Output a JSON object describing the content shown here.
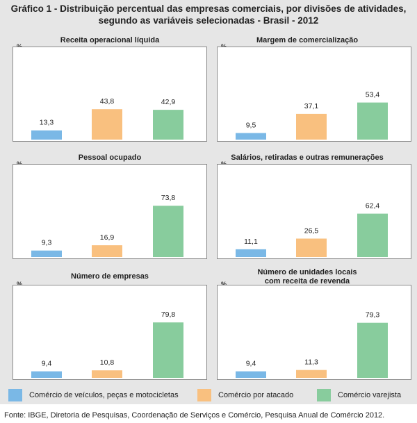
{
  "figure_title_line1": "Gráfico 1 - Distribuição percentual das empresas comerciais, por divisões de atividades,",
  "figure_title_line2": "segundo as variáveis selecionadas - Brasil - 2012",
  "unit_label": "%",
  "colors": {
    "veiculos": "#7ab8e6",
    "atacado": "#f9c07f",
    "varejo": "#88cc9d"
  },
  "chart_data": [
    {
      "type": "bar",
      "title": "Receita  operacional líquida",
      "ylabel": "%",
      "ylim": [
        0,
        100
      ],
      "categories": [
        "Comércio de veículos, peças e motocicletas",
        "Comércio por atacado",
        "Comércio varejista"
      ],
      "values": [
        13.3,
        43.8,
        42.9
      ],
      "value_labels": [
        "13,3",
        "43,8",
        "42,9"
      ]
    },
    {
      "type": "bar",
      "title": "Margem de comercialização",
      "ylabel": "%",
      "ylim": [
        0,
        100
      ],
      "categories": [
        "Comércio de veículos, peças e motocicletas",
        "Comércio por atacado",
        "Comércio varejista"
      ],
      "values": [
        9.5,
        37.1,
        53.4
      ],
      "value_labels": [
        "9,5",
        "37,1",
        "53,4"
      ]
    },
    {
      "type": "bar",
      "title": "Pessoal ocupado",
      "ylabel": "%",
      "ylim": [
        0,
        100
      ],
      "categories": [
        "Comércio de veículos, peças e motocicletas",
        "Comércio por atacado",
        "Comércio varejista"
      ],
      "values": [
        9.3,
        16.9,
        73.8
      ],
      "value_labels": [
        "9,3",
        "16,9",
        "73,8"
      ]
    },
    {
      "type": "bar",
      "title": "Salários, retiradas e outras remunerações",
      "ylabel": "%",
      "ylim": [
        0,
        100
      ],
      "categories": [
        "Comércio de veículos, peças e motocicletas",
        "Comércio por atacado",
        "Comércio varejista"
      ],
      "values": [
        11.1,
        26.5,
        62.4
      ],
      "value_labels": [
        "11,1",
        "26,5",
        "62,4"
      ]
    },
    {
      "type": "bar",
      "title": "Número de empresas",
      "ylabel": "%",
      "ylim": [
        0,
        100
      ],
      "categories": [
        "Comércio de veículos, peças e motocicletas",
        "Comércio por atacado",
        "Comércio varejista"
      ],
      "values": [
        9.4,
        10.8,
        79.8
      ],
      "value_labels": [
        "9,4",
        "10,8",
        "79,8"
      ]
    },
    {
      "type": "bar",
      "title_line1": "Número de unidades locais",
      "title_line2": "com receita de revenda",
      "ylabel": "%",
      "ylim": [
        0,
        100
      ],
      "categories": [
        "Comércio de veículos, peças e motocicletas",
        "Comércio por atacado",
        "Comércio varejista"
      ],
      "values": [
        9.4,
        11.3,
        79.3
      ],
      "value_labels": [
        "9,4",
        "11,3",
        "79,3"
      ]
    }
  ],
  "legend": [
    {
      "label": "Comércio de veículos, peças e motocicletas",
      "color": "#7ab8e6"
    },
    {
      "label": "Comércio por atacado",
      "color": "#f9c07f"
    },
    {
      "label": "Comércio varejista",
      "color": "#88cc9d"
    }
  ],
  "source": "Fonte: IBGE, Diretoria de Pesquisas, Coordenação de Serviços e Comércio, Pesquisa Anual de Comércio  2012."
}
